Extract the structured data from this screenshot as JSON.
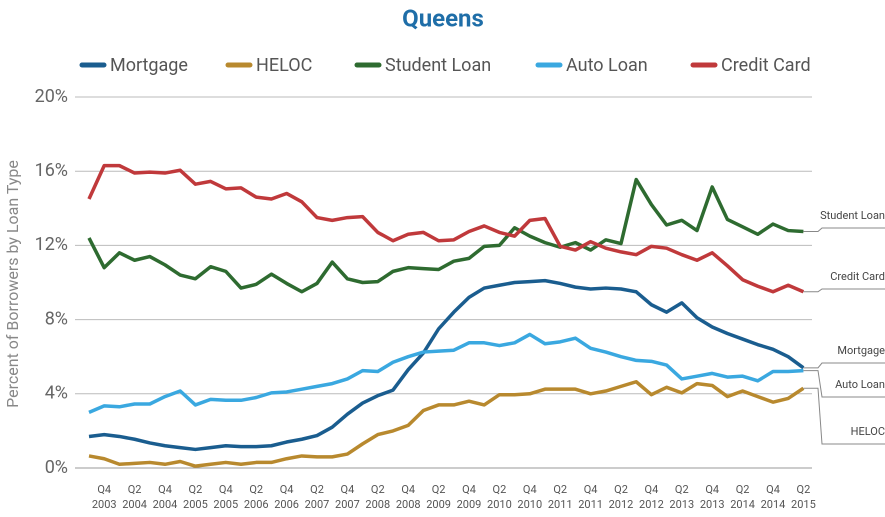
{
  "chart_data": {
    "type": "line",
    "title": "Queens",
    "ylabel": "Percent of Borrowers by Loan Type",
    "categories": [
      null,
      "Q4 2003",
      null,
      "Q2 2004",
      null,
      "Q4 2004",
      null,
      "Q2 2005",
      null,
      "Q4 2005",
      null,
      "Q2 2006",
      null,
      "Q4 2006",
      null,
      "Q2 2007",
      null,
      "Q4 2007",
      null,
      "Q2 2008",
      null,
      "Q4 2008",
      null,
      "Q2 2009",
      null,
      "Q4 2009",
      null,
      "Q2 2010",
      null,
      "Q4 2010",
      null,
      "Q2 2011",
      null,
      "Q4 2011",
      null,
      "Q2 2012",
      null,
      "Q4 2012",
      null,
      "Q2 2013",
      null,
      "Q4 2013",
      null,
      "Q2 2014",
      null,
      "Q4 2014",
      null,
      "Q2 2015"
    ],
    "series": [
      {
        "name": "Mortgage",
        "color": "#1a5d8f",
        "values": [
          1.7,
          1.8,
          1.7,
          1.55,
          1.35,
          1.2,
          1.1,
          1.0,
          1.1,
          1.2,
          1.15,
          1.15,
          1.2,
          1.4,
          1.55,
          1.75,
          2.2,
          2.9,
          3.5,
          3.9,
          4.2,
          5.3,
          6.2,
          7.5,
          8.4,
          9.2,
          9.7,
          9.85,
          10.0,
          10.05,
          10.1,
          9.95,
          9.75,
          9.65,
          9.7,
          9.65,
          9.5,
          8.8,
          8.4,
          8.9,
          8.1,
          7.6,
          7.25,
          6.95,
          6.65,
          6.4,
          6.0,
          5.4
        ]
      },
      {
        "name": "HELOC",
        "color": "#b8892e",
        "values": [
          0.65,
          0.5,
          0.2,
          0.25,
          0.3,
          0.2,
          0.35,
          0.1,
          0.2,
          0.3,
          0.2,
          0.3,
          0.3,
          0.5,
          0.65,
          0.6,
          0.6,
          0.75,
          1.3,
          1.8,
          2.0,
          2.3,
          3.1,
          3.4,
          3.4,
          3.6,
          3.4,
          3.95,
          3.95,
          4.0,
          4.25,
          4.25,
          4.25,
          4.0,
          4.15,
          4.4,
          4.65,
          3.95,
          4.35,
          4.05,
          4.55,
          4.45,
          3.85,
          4.15,
          3.85,
          3.55,
          3.75,
          4.3
        ]
      },
      {
        "name": "Student Loan",
        "color": "#2e6b30",
        "values": [
          12.4,
          10.8,
          11.6,
          11.2,
          11.4,
          10.95,
          10.4,
          10.2,
          10.85,
          10.6,
          9.7,
          9.9,
          10.45,
          9.95,
          9.5,
          9.95,
          11.1,
          10.2,
          10.0,
          10.05,
          10.6,
          10.8,
          10.75,
          10.7,
          11.15,
          11.3,
          11.95,
          12.0,
          12.95,
          12.5,
          12.15,
          11.9,
          12.15,
          11.75,
          12.3,
          12.1,
          15.55,
          14.2,
          13.1,
          13.35,
          12.8,
          15.15,
          13.4,
          13.0,
          12.6,
          13.15,
          12.8,
          12.75
        ]
      },
      {
        "name": "Auto Loan",
        "color": "#3aa8e0",
        "values": [
          3.0,
          3.35,
          3.3,
          3.45,
          3.45,
          3.85,
          4.15,
          3.4,
          3.7,
          3.65,
          3.65,
          3.8,
          4.05,
          4.1,
          4.25,
          4.4,
          4.55,
          4.8,
          5.25,
          5.2,
          5.7,
          6.0,
          6.25,
          6.3,
          6.35,
          6.75,
          6.75,
          6.6,
          6.75,
          7.2,
          6.7,
          6.8,
          7.0,
          6.45,
          6.25,
          6.0,
          5.8,
          5.75,
          5.55,
          4.8,
          4.95,
          5.1,
          4.9,
          4.95,
          4.7,
          5.2,
          5.2,
          5.25
        ]
      },
      {
        "name": "Credit Card",
        "color": "#c0393b",
        "values": [
          14.5,
          16.3,
          16.3,
          15.9,
          15.95,
          15.9,
          16.05,
          15.3,
          15.45,
          15.05,
          15.1,
          14.6,
          14.5,
          14.8,
          14.35,
          13.5,
          13.35,
          13.5,
          13.55,
          12.7,
          12.25,
          12.6,
          12.7,
          12.25,
          12.3,
          12.75,
          13.05,
          12.7,
          12.5,
          13.35,
          13.45,
          11.95,
          11.75,
          12.2,
          11.85,
          11.65,
          11.5,
          11.95,
          11.85,
          11.5,
          11.2,
          11.6,
          10.9,
          10.15,
          9.8,
          9.5,
          9.85,
          9.5
        ]
      }
    ],
    "ylim": [
      0,
      20
    ],
    "yticks": [
      {
        "value": 0,
        "label": "0%"
      },
      {
        "value": 4,
        "label": "4%"
      },
      {
        "value": 8,
        "label": "8%"
      },
      {
        "value": 12,
        "label": "12%"
      },
      {
        "value": 16,
        "label": "16%"
      },
      {
        "value": 20,
        "label": "20%"
      }
    ],
    "grid": true
  }
}
